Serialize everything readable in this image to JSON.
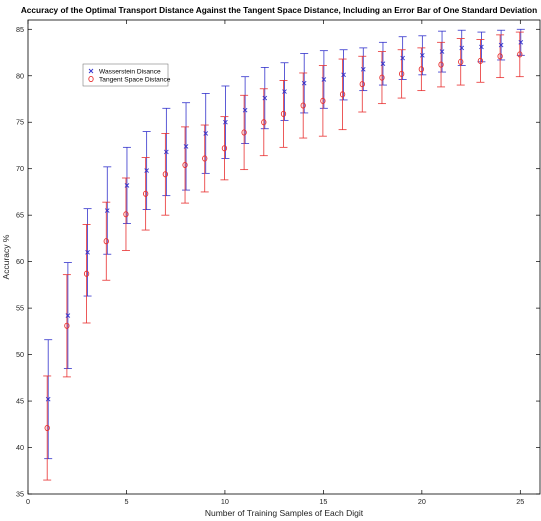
{
  "chart_data": {
    "type": "scatter",
    "title": "Accuracy of the Optimal Transport Distance Against the Tangent Space Distance, Including an Error Bar of One Standard Deviation",
    "xlabel": "Number of Training Samples of Each Digit",
    "ylabel": "Accuracy %",
    "xlim": [
      0,
      26
    ],
    "ylim": [
      35,
      86
    ],
    "xticks": [
      0,
      5,
      10,
      15,
      20,
      25
    ],
    "yticks": [
      35,
      40,
      45,
      50,
      55,
      60,
      65,
      70,
      75,
      80,
      85
    ],
    "grid": false,
    "legend_position": "upper-left",
    "x": [
      1,
      2,
      3,
      4,
      5,
      6,
      7,
      8,
      9,
      10,
      11,
      12,
      13,
      14,
      15,
      16,
      17,
      18,
      19,
      20,
      21,
      22,
      23,
      24,
      25
    ],
    "series": [
      {
        "name": "Wasserstein Disance",
        "marker": "x",
        "color": "#3333cc",
        "values": [
          45.2,
          54.2,
          61.0,
          65.5,
          68.2,
          69.8,
          71.8,
          72.4,
          73.8,
          75.0,
          76.3,
          77.6,
          78.3,
          79.2,
          79.6,
          80.1,
          80.7,
          81.3,
          81.9,
          82.2,
          82.6,
          83.0,
          83.1,
          83.3,
          83.6
        ],
        "error": [
          6.4,
          5.7,
          4.7,
          4.7,
          4.1,
          4.2,
          4.7,
          4.7,
          4.3,
          3.9,
          3.6,
          3.3,
          3.1,
          3.2,
          3.1,
          2.7,
          2.3,
          2.3,
          2.3,
          2.1,
          2.2,
          1.9,
          1.6,
          1.6,
          1.4
        ]
      },
      {
        "name": "Tangent Space Distance",
        "marker": "o",
        "color": "#e83030",
        "values": [
          42.1,
          53.1,
          58.7,
          62.2,
          65.1,
          67.3,
          69.4,
          70.4,
          71.1,
          72.2,
          73.9,
          75.0,
          75.9,
          76.8,
          77.3,
          78.0,
          79.1,
          79.8,
          80.2,
          80.7,
          81.2,
          81.5,
          81.6,
          82.1,
          82.3
        ],
        "error": [
          5.6,
          5.5,
          5.3,
          4.2,
          3.9,
          3.9,
          4.4,
          4.1,
          3.6,
          3.4,
          4.0,
          3.6,
          3.6,
          3.5,
          3.8,
          3.8,
          3.0,
          2.8,
          2.6,
          2.3,
          2.4,
          2.5,
          2.3,
          2.3,
          2.4
        ]
      }
    ]
  }
}
